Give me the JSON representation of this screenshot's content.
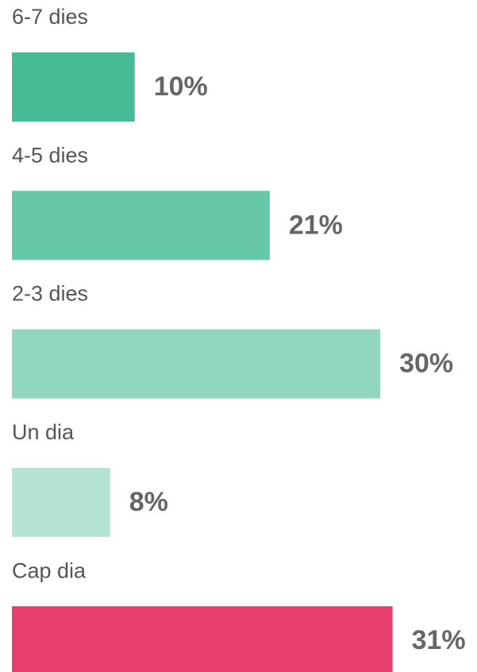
{
  "chart_data": {
    "type": "bar",
    "orientation": "horizontal",
    "categories": [
      "6-7 dies",
      "4-5 dies",
      "2-3 dies",
      "Un dia",
      "Cap dia"
    ],
    "values": [
      10,
      21,
      30,
      8,
      31
    ],
    "value_labels": [
      "10%",
      "21%",
      "30%",
      "8%",
      "31%"
    ],
    "colors": [
      "#46bb96",
      "#66c8a9",
      "#91d6bf",
      "#b5e4d5",
      "#e83e6f"
    ]
  }
}
